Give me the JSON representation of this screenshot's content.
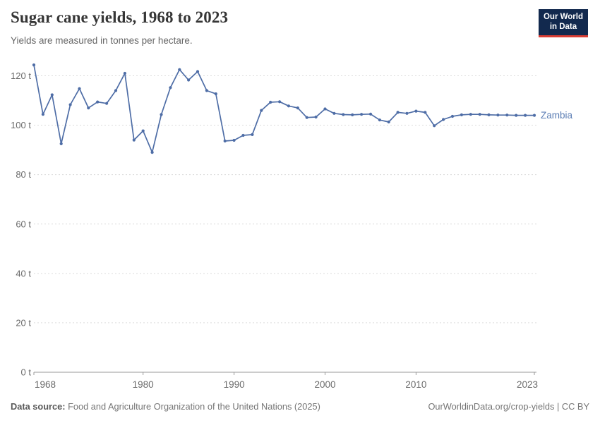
{
  "header": {
    "title": "Sugar cane yields, 1968 to 2023",
    "subtitle": "Yields are measured in tonnes per hectare.",
    "logo": {
      "line1": "Our World",
      "line2": "in Data"
    }
  },
  "footer": {
    "source_label": "Data source:",
    "source_text": " Food and Agriculture Organization of the United Nations (2025)",
    "link_text": "OurWorldinData.org/crop-yields | CC BY"
  },
  "colors": {
    "line": "#4e6da6",
    "entity_label": "#5b7db4",
    "grid": "#dcdcdc",
    "axis": "#9a9a9a",
    "tick_text": "#6b6b6b",
    "logo_bg": "#12294e",
    "logo_accent": "#da3d34"
  },
  "chart_data": {
    "type": "line",
    "title": "Sugar cane yields, 1968 to 2023",
    "subtitle": "Yields are measured in tonnes per hectare.",
    "unit": "tonnes per hectare",
    "ytick_suffix": " t",
    "ylim": [
      0,
      130
    ],
    "yticks": [
      0,
      20,
      40,
      60,
      80,
      100,
      120
    ],
    "xticks": [
      1968,
      1980,
      1990,
      2000,
      2010,
      2023
    ],
    "grid": "horizontal-dashed",
    "legend": "inline-right-label",
    "x": [
      1968,
      1969,
      1970,
      1971,
      1972,
      1973,
      1974,
      1975,
      1976,
      1977,
      1978,
      1979,
      1980,
      1981,
      1982,
      1983,
      1984,
      1985,
      1986,
      1987,
      1988,
      1989,
      1990,
      1991,
      1992,
      1993,
      1994,
      1995,
      1996,
      1997,
      1998,
      1999,
      2000,
      2001,
      2002,
      2003,
      2004,
      2005,
      2006,
      2007,
      2008,
      2009,
      2010,
      2011,
      2012,
      2013,
      2014,
      2015,
      2016,
      2017,
      2018,
      2019,
      2020,
      2021,
      2022,
      2023
    ],
    "series": [
      {
        "name": "Zambia",
        "color": "#4e6da6",
        "values": [
          124.4,
          104.4,
          112.3,
          92.5,
          108.3,
          114.8,
          107.0,
          109.4,
          108.8,
          114.0,
          121.0,
          94.0,
          97.7,
          89.0,
          104.3,
          115.2,
          122.5,
          118.3,
          121.7,
          114.0,
          112.7,
          93.6,
          93.9,
          95.9,
          96.2,
          106.0,
          109.3,
          109.5,
          107.8,
          107.0,
          103.1,
          103.3,
          106.6,
          104.8,
          104.3,
          104.2,
          104.4,
          104.5,
          102.1,
          101.3,
          105.2,
          104.8,
          105.7,
          105.2,
          99.8,
          102.3,
          103.6,
          104.2,
          104.4,
          104.4,
          104.2,
          104.1,
          104.1,
          104.0,
          104.0,
          104.0
        ]
      }
    ]
  }
}
